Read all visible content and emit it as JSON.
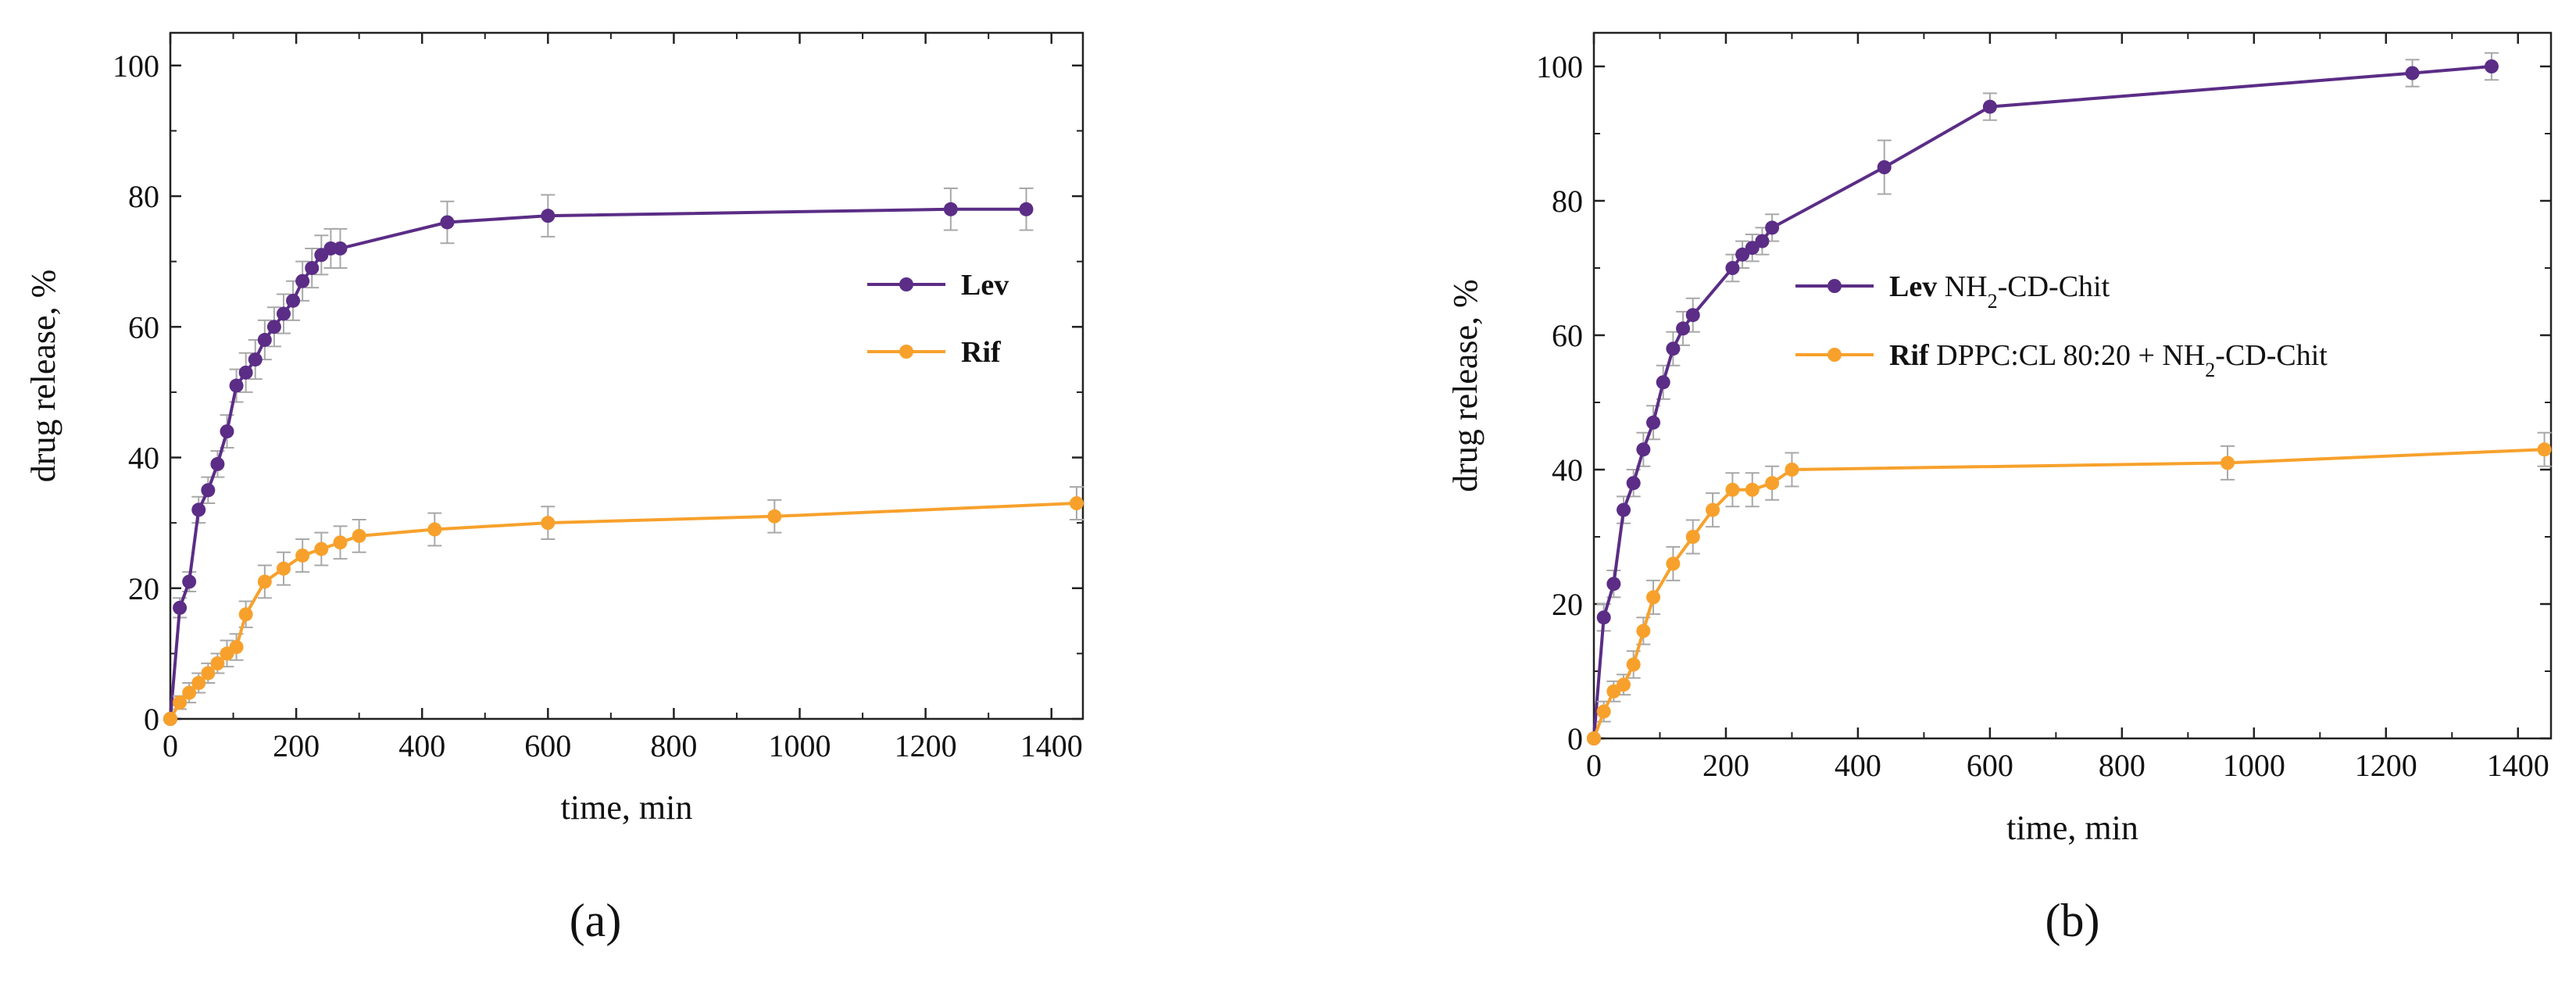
{
  "colors": {
    "lev": "#5b2d86",
    "rif": "#f7a12c",
    "error_bar": "#a8a8a8",
    "axis": "#222222"
  },
  "chart_data": [
    {
      "type": "line",
      "panel_label": "(a)",
      "xlabel": "time, min",
      "ylabel": "drug release, %",
      "xlim": [
        0,
        1450
      ],
      "ylim": [
        0,
        105
      ],
      "xticks": [
        0,
        200,
        400,
        600,
        800,
        1000,
        1200,
        1400
      ],
      "yticks": [
        0,
        20,
        40,
        60,
        80,
        100
      ],
      "legend_position": "center-right",
      "series": [
        {
          "key": "lev",
          "name": "Lev",
          "suffix": "",
          "x": [
            0,
            15,
            30,
            45,
            60,
            75,
            90,
            105,
            120,
            135,
            150,
            165,
            180,
            195,
            210,
            225,
            240,
            255,
            270,
            440,
            600,
            1240,
            1360
          ],
          "y": [
            0,
            17,
            21,
            32,
            35,
            39,
            44,
            51,
            53,
            55,
            58,
            60,
            62,
            64,
            67,
            69,
            71,
            72,
            72,
            76,
            77,
            78,
            78
          ],
          "err": [
            0,
            1.5,
            1.5,
            2,
            2,
            2,
            2.5,
            2.5,
            3,
            3,
            3,
            3,
            3,
            3,
            3,
            3,
            3,
            3,
            3,
            3.2,
            3.2,
            3.2,
            3.2
          ]
        },
        {
          "key": "rif",
          "name": "Rif",
          "suffix": "",
          "x": [
            0,
            15,
            30,
            45,
            60,
            75,
            90,
            105,
            120,
            150,
            180,
            210,
            240,
            270,
            300,
            420,
            600,
            960,
            1440
          ],
          "y": [
            0,
            2.5,
            4,
            5.5,
            7,
            8.5,
            10,
            11,
            16,
            21,
            23,
            25,
            26,
            27,
            28,
            29,
            30,
            31,
            33
          ],
          "err": [
            0,
            1,
            1.5,
            1.5,
            1.5,
            1.5,
            2,
            2,
            2,
            2.5,
            2.5,
            2.5,
            2.5,
            2.5,
            2.5,
            2.5,
            2.5,
            2.5,
            2.5
          ]
        }
      ]
    },
    {
      "type": "line",
      "panel_label": "(b)",
      "xlabel": "time, min",
      "ylabel": "drug release, %",
      "xlim": [
        0,
        1450
      ],
      "ylim": [
        0,
        105
      ],
      "xticks": [
        0,
        200,
        400,
        600,
        800,
        1000,
        1200,
        1400
      ],
      "yticks": [
        0,
        20,
        40,
        60,
        80,
        100
      ],
      "legend_position": "center-right",
      "series": [
        {
          "key": "lev",
          "name": "Lev",
          "suffix": "NH2-CD-Chit",
          "x": [
            0,
            15,
            30,
            45,
            60,
            75,
            90,
            105,
            120,
            135,
            150,
            210,
            225,
            240,
            255,
            270,
            440,
            600,
            1240,
            1360
          ],
          "y": [
            0,
            18,
            23,
            34,
            38,
            43,
            47,
            53,
            58,
            61,
            63,
            70,
            72,
            73,
            74,
            76,
            85,
            94,
            99,
            100
          ],
          "err": [
            0,
            2,
            2,
            2,
            2,
            2.5,
            2.5,
            2.5,
            2.5,
            2.5,
            2.5,
            2,
            2,
            2,
            2,
            2,
            4,
            2,
            2,
            2
          ]
        },
        {
          "key": "rif",
          "name": "Rif",
          "suffix": "DPPC:CL 80:20 + NH2-CD-Chit",
          "x": [
            0,
            15,
            30,
            45,
            60,
            75,
            90,
            120,
            150,
            180,
            210,
            240,
            270,
            300,
            960,
            1440
          ],
          "y": [
            0,
            4,
            7,
            8,
            11,
            16,
            21,
            26,
            30,
            34,
            37,
            37,
            38,
            40,
            41,
            43
          ],
          "err": [
            0,
            1.5,
            1.5,
            1.5,
            2,
            2,
            2.5,
            2.5,
            2.5,
            2.5,
            2.5,
            2.5,
            2.5,
            2.5,
            2.5,
            2.5
          ]
        }
      ]
    }
  ]
}
